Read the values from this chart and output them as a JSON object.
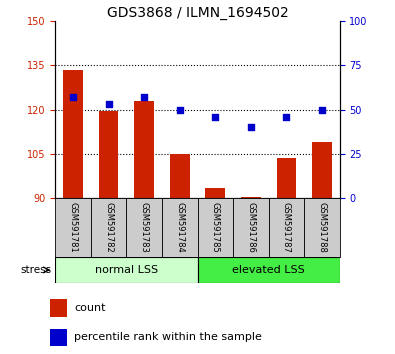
{
  "title": "GDS3868 / ILMN_1694502",
  "samples": [
    "GSM591781",
    "GSM591782",
    "GSM591783",
    "GSM591784",
    "GSM591785",
    "GSM591786",
    "GSM591787",
    "GSM591788"
  ],
  "count_values": [
    133.5,
    119.5,
    123.0,
    105.0,
    93.5,
    90.5,
    103.5,
    109.0
  ],
  "count_base": 90,
  "percentile_values": [
    57,
    53,
    57,
    50,
    46,
    40,
    46,
    50
  ],
  "ylim_left": [
    90,
    150
  ],
  "ylim_right": [
    0,
    100
  ],
  "yticks_left": [
    90,
    105,
    120,
    135,
    150
  ],
  "yticks_right": [
    0,
    25,
    50,
    75,
    100
  ],
  "grid_lines": [
    105,
    120,
    135
  ],
  "bar_color": "#cc2200",
  "dot_color": "#0000cc",
  "bar_width": 0.55,
  "group1_label": "normal LSS",
  "group2_label": "elevated LSS",
  "group1_color": "#ccffcc",
  "group2_color": "#44ee44",
  "stress_label": "stress",
  "legend_count": "count",
  "legend_pct": "percentile rank within the sample",
  "right_axis_color": "#0000cc",
  "left_axis_color": "#cc2200",
  "tick_label_bg": "#cccccc",
  "title_fontsize": 10,
  "tick_fontsize": 7,
  "label_fontsize": 7
}
